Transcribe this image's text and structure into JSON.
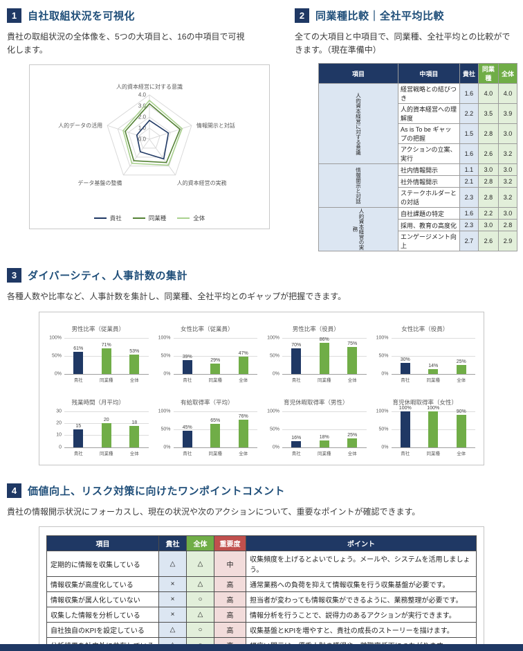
{
  "colors": {
    "navy": "#1F3864",
    "title_blue": "#1F4E79",
    "green_header": "#70AD47",
    "green_dark": "#548235",
    "green_light": "#A9D18E",
    "light_blue_cell": "#DCE6F2",
    "light_green_cell": "#E2EFDA",
    "red_header": "#C0504D",
    "light_red_cell": "#F2DCDB",
    "bar_series": [
      "#1F3864",
      "#70AD47",
      "#70AD47"
    ]
  },
  "sections": {
    "s1": {
      "number": "1",
      "title": "自社取組状況を可視化",
      "description": "貴社の取組状況の全体像を、5つの大項目と、16の中項目で可視化します。"
    },
    "s2": {
      "number": "2",
      "title": "同業種比較｜全社平均比較",
      "description": "全ての大項目と中項目で、同業種、全社平均との比較ができます。（現在準備中）"
    },
    "s3": {
      "number": "3",
      "title": "ダイバーシティ、人事計数の集計",
      "description": "各種人数や比率など、人事計数を集計し、同業種、全社平均とのギャップが把握できます。"
    },
    "s4": {
      "number": "4",
      "title": "価値向上、リスク対策に向けたワンポイントコメント",
      "description": "貴社の情報開示状況にフォーカスし、現在の状況や次のアクションについて、重要なポイントが確認できます。"
    }
  },
  "comparison_table": {
    "headers": [
      "項目",
      "中項目",
      "貴社",
      "同業種",
      "全体"
    ],
    "groups": [
      {
        "label": "人的資本経営に対する意識",
        "rows": [
          {
            "name": "経営戦略との結びつき",
            "own": "1.6",
            "industry": "4.0",
            "all": "4.0"
          },
          {
            "name": "人的資本経営への理解度",
            "own": "2.2",
            "industry": "3.5",
            "all": "3.9"
          },
          {
            "name": "As is To be ギャップの把握",
            "own": "1.5",
            "industry": "2.8",
            "all": "3.0"
          },
          {
            "name": "アクションの立案、実行",
            "own": "1.6",
            "industry": "2.6",
            "all": "3.2"
          }
        ]
      },
      {
        "label": "情報開示と対話",
        "rows": [
          {
            "name": "社内情報開示",
            "own": "1.1",
            "industry": "3.0",
            "all": "3.0"
          },
          {
            "name": "社外情報開示",
            "own": "2.1",
            "industry": "2.8",
            "all": "3.2"
          },
          {
            "name": "ステークホルダーとの対話",
            "own": "2.3",
            "industry": "2.8",
            "all": "3.2"
          }
        ]
      },
      {
        "label": "人的資本経営の実務",
        "rows": [
          {
            "name": "自社課題の特定",
            "own": "1.6",
            "industry": "2.2",
            "all": "3.0"
          },
          {
            "name": "採用、教育の高度化",
            "own": "2.3",
            "industry": "3.0",
            "all": "2.8"
          },
          {
            "name": "エンゲージメント向上",
            "own": "2.7",
            "industry": "2.6",
            "all": "2.9"
          }
        ]
      }
    ]
  },
  "chart_data": [
    {
      "type": "radar",
      "title": "取組状況レーダーチャート",
      "axes": [
        "人的資本経営に対する意識",
        "情報開示と対話",
        "人的資本経営の実務",
        "データ基盤の整備",
        "人的データの活用"
      ],
      "ticks": [
        "0.0",
        "1.0",
        "2.0",
        "3.0",
        "4.0"
      ],
      "max": 4,
      "series": [
        {
          "name": "貴社",
          "color": "#1F3864",
          "values": [
            1.7,
            1.8,
            2.2,
            1.4,
            1.2
          ]
        },
        {
          "name": "同業種",
          "color": "#548235",
          "values": [
            3.2,
            2.9,
            2.6,
            2.4,
            2.3
          ]
        },
        {
          "name": "全体",
          "color": "#A9D18E",
          "values": [
            3.5,
            3.1,
            2.9,
            2.7,
            2.5
          ]
        }
      ]
    },
    {
      "type": "bar",
      "title": "男性比率（従業員）",
      "categories": [
        "貴社",
        "同業種",
        "全体"
      ],
      "values": [
        61,
        71,
        53
      ],
      "labels": [
        "61%",
        "71%",
        "53%"
      ],
      "ymax": 100,
      "yticks": [
        "100%",
        "50%",
        "0%"
      ]
    },
    {
      "type": "bar",
      "title": "女性比率（従業員）",
      "categories": [
        "貴社",
        "同業種",
        "全体"
      ],
      "values": [
        39,
        29,
        47
      ],
      "labels": [
        "39%",
        "29%",
        "47%"
      ],
      "ymax": 100,
      "yticks": [
        "100%",
        "50%",
        "0%"
      ]
    },
    {
      "type": "bar",
      "title": "男性比率（役員）",
      "categories": [
        "貴社",
        "同業種",
        "全体"
      ],
      "values": [
        70,
        86,
        75
      ],
      "labels": [
        "70%",
        "86%",
        "75%"
      ],
      "ymax": 100,
      "yticks": [
        "100%",
        "50%",
        "0%"
      ]
    },
    {
      "type": "bar",
      "title": "女性比率（役員）",
      "categories": [
        "貴社",
        "同業種",
        "全体"
      ],
      "values": [
        30,
        14,
        25
      ],
      "labels": [
        "30%",
        "14%",
        "25%"
      ],
      "ymax": 100,
      "yticks": [
        "100%",
        "50%",
        "0%"
      ]
    },
    {
      "type": "bar",
      "title": "残業時間（月平均）",
      "categories": [
        "貴社",
        "同業種",
        "全体"
      ],
      "values": [
        15,
        20,
        18
      ],
      "labels": [
        "15",
        "20",
        "18"
      ],
      "ymax": 30,
      "yticks": [
        "30",
        "20",
        "10",
        "0"
      ]
    },
    {
      "type": "bar",
      "title": "有給取得率（平均）",
      "categories": [
        "貴社",
        "同業種",
        "全体"
      ],
      "values": [
        45,
        65,
        76
      ],
      "labels": [
        "45%",
        "65%",
        "76%"
      ],
      "ymax": 100,
      "yticks": [
        "100%",
        "50%",
        "0%"
      ]
    },
    {
      "type": "bar",
      "title": "育児休暇取得率（男性）",
      "categories": [
        "貴社",
        "同業種",
        "全体"
      ],
      "values": [
        16,
        18,
        25
      ],
      "labels": [
        "16%",
        "18%",
        "25%"
      ],
      "ymax": 100,
      "yticks": [
        "100%",
        "50%",
        "0%"
      ]
    },
    {
      "type": "bar",
      "title": "育児休暇取得率（女性）",
      "categories": [
        "貴社",
        "同業種",
        "全体"
      ],
      "values": [
        100,
        100,
        90
      ],
      "labels": [
        "100%",
        "100%",
        "90%"
      ],
      "ymax": 100,
      "yticks": [
        "100%",
        "50%",
        "0%"
      ]
    }
  ],
  "onepoint_table": {
    "headers": [
      "項目",
      "貴社",
      "全体",
      "重要度",
      "ポイント"
    ],
    "rows": [
      {
        "item": "定期的に情報を収集している",
        "own": "△",
        "all": "△",
        "importance": "中",
        "point": "収集頻度を上げるとよいでしょう。メールや、システムを活用しましょう。"
      },
      {
        "item": "情報収集が高度化している",
        "own": "×",
        "all": "△",
        "importance": "高",
        "point": "通常業務への負荷を抑えて情報収集を行う収集基盤が必要です。"
      },
      {
        "item": "情報収集が属人化していない",
        "own": "×",
        "all": "○",
        "importance": "高",
        "point": "担当者が変わっても情報収集ができるように、業務整理が必要です。"
      },
      {
        "item": "収集した情報を分析している",
        "own": "×",
        "all": "△",
        "importance": "高",
        "point": "情報分析を行うことで、説得力のあるアクションが実行できます。"
      },
      {
        "item": "自社独自のKPIを設定している",
        "own": "△",
        "all": "○",
        "importance": "高",
        "point": "収集基盤とKPIを増やすと、貴社の成長のストーリーを描けます。"
      },
      {
        "item": "分析結果を社内外に共有している",
        "own": "△",
        "all": "○",
        "importance": "高",
        "point": "幅広い開示は、優秀人財の獲得や、離職率低下につながります。"
      }
    ]
  }
}
